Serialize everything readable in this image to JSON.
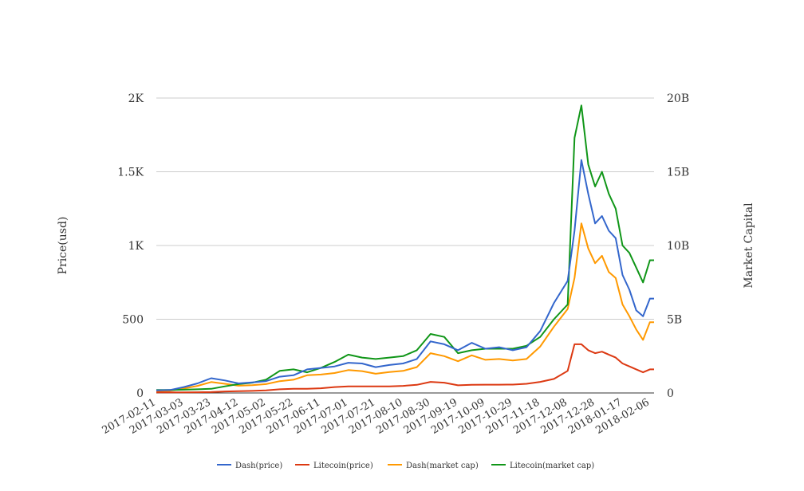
{
  "chart_data": {
    "type": "line",
    "title": "",
    "xlabel": "",
    "ylabel": "Price(usd)",
    "y2label": "Market Capital",
    "ylim": [
      0,
      2000
    ],
    "y2lim": [
      0,
      20000000000
    ],
    "yticks": [
      {
        "value": 0,
        "label": "0"
      },
      {
        "value": 500,
        "label": "500"
      },
      {
        "value": 1000,
        "label": "1K"
      },
      {
        "value": 1500,
        "label": "1.5K"
      },
      {
        "value": 2000,
        "label": "2K"
      }
    ],
    "y2ticks": [
      {
        "value": 0,
        "label": "0"
      },
      {
        "value": 5000000000,
        "label": "5B"
      },
      {
        "value": 10000000000,
        "label": "10B"
      },
      {
        "value": 15000000000,
        "label": "15B"
      },
      {
        "value": 20000000000,
        "label": "20B"
      }
    ],
    "xtick_labels": [
      "2017-02-11",
      "2017-03-03",
      "2017-03-23",
      "2017-04-12",
      "2017-05-02",
      "2017-05-22",
      "2017-06-11",
      "2017-07-01",
      "2017-07-21",
      "2017-08-10",
      "2017-08-30",
      "2017-09-19",
      "2017-10-09",
      "2017-10-29",
      "2017-11-18",
      "2017-12-08",
      "2017-12-28",
      "2018-01-17",
      "2018-02-06"
    ],
    "grid": true,
    "legend_position": "bottom",
    "x": [
      "2017-02-11",
      "2017-02-21",
      "2017-03-03",
      "2017-03-13",
      "2017-03-23",
      "2017-04-02",
      "2017-04-12",
      "2017-04-22",
      "2017-05-02",
      "2017-05-12",
      "2017-05-22",
      "2017-06-01",
      "2017-06-11",
      "2017-06-21",
      "2017-07-01",
      "2017-07-11",
      "2017-07-21",
      "2017-07-31",
      "2017-08-10",
      "2017-08-20",
      "2017-08-30",
      "2017-09-09",
      "2017-09-19",
      "2017-09-29",
      "2017-10-09",
      "2017-10-19",
      "2017-10-29",
      "2017-11-08",
      "2017-11-18",
      "2017-11-28",
      "2017-12-08",
      "2017-12-13",
      "2017-12-18",
      "2017-12-23",
      "2017-12-28",
      "2018-01-02",
      "2018-01-07",
      "2018-01-12",
      "2018-01-17",
      "2018-01-22",
      "2018-01-27",
      "2018-02-01",
      "2018-02-06",
      "2018-02-09"
    ],
    "series": [
      {
        "name": "Dash(price)",
        "axis": "left",
        "color": "#3366cc",
        "values": [
          18,
          20,
          40,
          65,
          100,
          85,
          65,
          72,
          80,
          110,
          120,
          160,
          170,
          180,
          205,
          200,
          175,
          190,
          200,
          230,
          350,
          330,
          290,
          340,
          300,
          310,
          290,
          310,
          420,
          610,
          760,
          1100,
          1580,
          1350,
          1150,
          1200,
          1100,
          1050,
          800,
          700,
          560,
          520,
          640,
          640
        ]
      },
      {
        "name": "Litecoin(price)",
        "axis": "left",
        "color": "#dc3912",
        "values": [
          4,
          4,
          4,
          5,
          6,
          10,
          12,
          14,
          18,
          25,
          28,
          28,
          32,
          40,
          45,
          45,
          45,
          45,
          48,
          55,
          75,
          70,
          52,
          55,
          56,
          56,
          57,
          62,
          75,
          95,
          150,
          330,
          330,
          290,
          270,
          280,
          260,
          240,
          200,
          180,
          160,
          140,
          160,
          160
        ]
      },
      {
        "name": "Dash(market cap)",
        "axis": "right",
        "color": "#ff9900",
        "values": [
          130000000,
          150000000,
          300000000,
          480000000,
          740000000,
          620000000,
          490000000,
          530000000,
          600000000,
          800000000,
          900000000,
          1200000000,
          1250000000,
          1350000000,
          1550000000,
          1480000000,
          1300000000,
          1420000000,
          1500000000,
          1750000000,
          2700000000,
          2500000000,
          2150000000,
          2550000000,
          2250000000,
          2300000000,
          2200000000,
          2300000000,
          3150000000,
          4500000000,
          5700000000,
          7800000000,
          11500000000,
          9800000000,
          8800000000,
          9300000000,
          8200000000,
          7800000000,
          6000000000,
          5200000000,
          4300000000,
          3600000000,
          4800000000,
          4800000000
        ]
      },
      {
        "name": "Litecoin(market cap)",
        "axis": "right",
        "color": "#109618",
        "values": [
          200000000,
          200000000,
          220000000,
          250000000,
          280000000,
          450000000,
          600000000,
          700000000,
          900000000,
          1500000000,
          1600000000,
          1400000000,
          1700000000,
          2100000000,
          2600000000,
          2400000000,
          2300000000,
          2400000000,
          2500000000,
          2900000000,
          4000000000,
          3800000000,
          2700000000,
          2900000000,
          3000000000,
          3000000000,
          3000000000,
          3200000000,
          3800000000,
          5000000000,
          6000000000,
          17300000000,
          19500000000,
          15500000000,
          14000000000,
          15000000000,
          13500000000,
          12500000000,
          10000000000,
          9500000000,
          8500000000,
          7500000000,
          9000000000,
          9000000000
        ]
      }
    ]
  }
}
